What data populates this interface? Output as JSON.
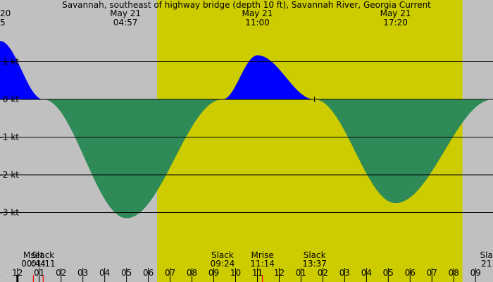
{
  "chart_data": {
    "type": "area",
    "title": "Savannah, southeast of highway bridge (depth 10 ft), Savannah River, Georgia Current",
    "y_unit": "kt",
    "ylim": [
      -4.0,
      1.5
    ],
    "y_ticks": [
      1,
      0,
      -1,
      -2,
      -3
    ],
    "y_tick_labels": [
      "1 kt",
      "0 kt",
      "-1 kt",
      "-2 kt",
      "-3 kt"
    ],
    "x_hour_range": [
      -0.8,
      21.8
    ],
    "hour_ticks": [
      {
        "h": -1,
        "label": "11"
      },
      {
        "h": 0,
        "label": "12"
      },
      {
        "h": 1,
        "label": "01"
      },
      {
        "h": 2,
        "label": "02"
      },
      {
        "h": 3,
        "label": "03"
      },
      {
        "h": 4,
        "label": "04"
      },
      {
        "h": 5,
        "label": "05"
      },
      {
        "h": 6,
        "label": "06"
      },
      {
        "h": 7,
        "label": "07"
      },
      {
        "h": 8,
        "label": "08"
      },
      {
        "h": 9,
        "label": "09"
      },
      {
        "h": 10,
        "label": "10"
      },
      {
        "h": 11,
        "label": "11"
      },
      {
        "h": 12,
        "label": "12"
      },
      {
        "h": 13,
        "label": "01"
      },
      {
        "h": 14,
        "label": "02"
      },
      {
        "h": 15,
        "label": "03"
      },
      {
        "h": 16,
        "label": "04"
      },
      {
        "h": 17,
        "label": "05"
      },
      {
        "h": 18,
        "label": "06"
      },
      {
        "h": 19,
        "label": "07"
      },
      {
        "h": 20,
        "label": "08"
      },
      {
        "h": 21,
        "label": "09"
      }
    ],
    "daylight": {
      "start_h": 6.4,
      "end_h": 20.4
    },
    "colors": {
      "night": "#c0c0c0",
      "day": "#cccc00",
      "flood": "#0000ff",
      "ebb": "#2e8b57",
      "line": "#000000",
      "moon_tick": "#ff0000"
    },
    "current_points": [
      {
        "h": -0.8,
        "v": 1.55
      },
      {
        "h": 1.18,
        "v": 0
      },
      {
        "h": 5.0,
        "v": -3.15
      },
      {
        "h": 9.4,
        "v": 0
      },
      {
        "h": 11.0,
        "v": 1.17
      },
      {
        "h": 13.62,
        "v": 0
      },
      {
        "h": 17.33,
        "v": -2.75
      },
      {
        "h": 21.8,
        "v": 0
      }
    ],
    "top_labels": [
      {
        "h": -0.8,
        "date": "20",
        "time": "5"
      },
      {
        "h": 4.95,
        "date": "May 21",
        "time": "04:57"
      },
      {
        "h": 11.0,
        "date": "May 21",
        "time": "11:00"
      },
      {
        "h": 17.33,
        "date": "May 21",
        "time": "17:20"
      }
    ],
    "bottom_events": [
      {
        "h": 0.73,
        "name": "Mset",
        "time": "00:44"
      },
      {
        "h": 1.18,
        "name": "Slack",
        "time": "01:11"
      },
      {
        "h": 9.4,
        "name": "Slack",
        "time": "09:24"
      },
      {
        "h": 11.23,
        "name": "Mrise",
        "time": "11:14"
      },
      {
        "h": 13.62,
        "name": "Slack",
        "time": "13:37"
      },
      {
        "h": 21.5,
        "name": "Sla",
        "time": "21"
      }
    ],
    "moon_ticks_h": [
      0.73,
      1.18,
      11.23
    ],
    "grid": true,
    "legend": "none"
  }
}
